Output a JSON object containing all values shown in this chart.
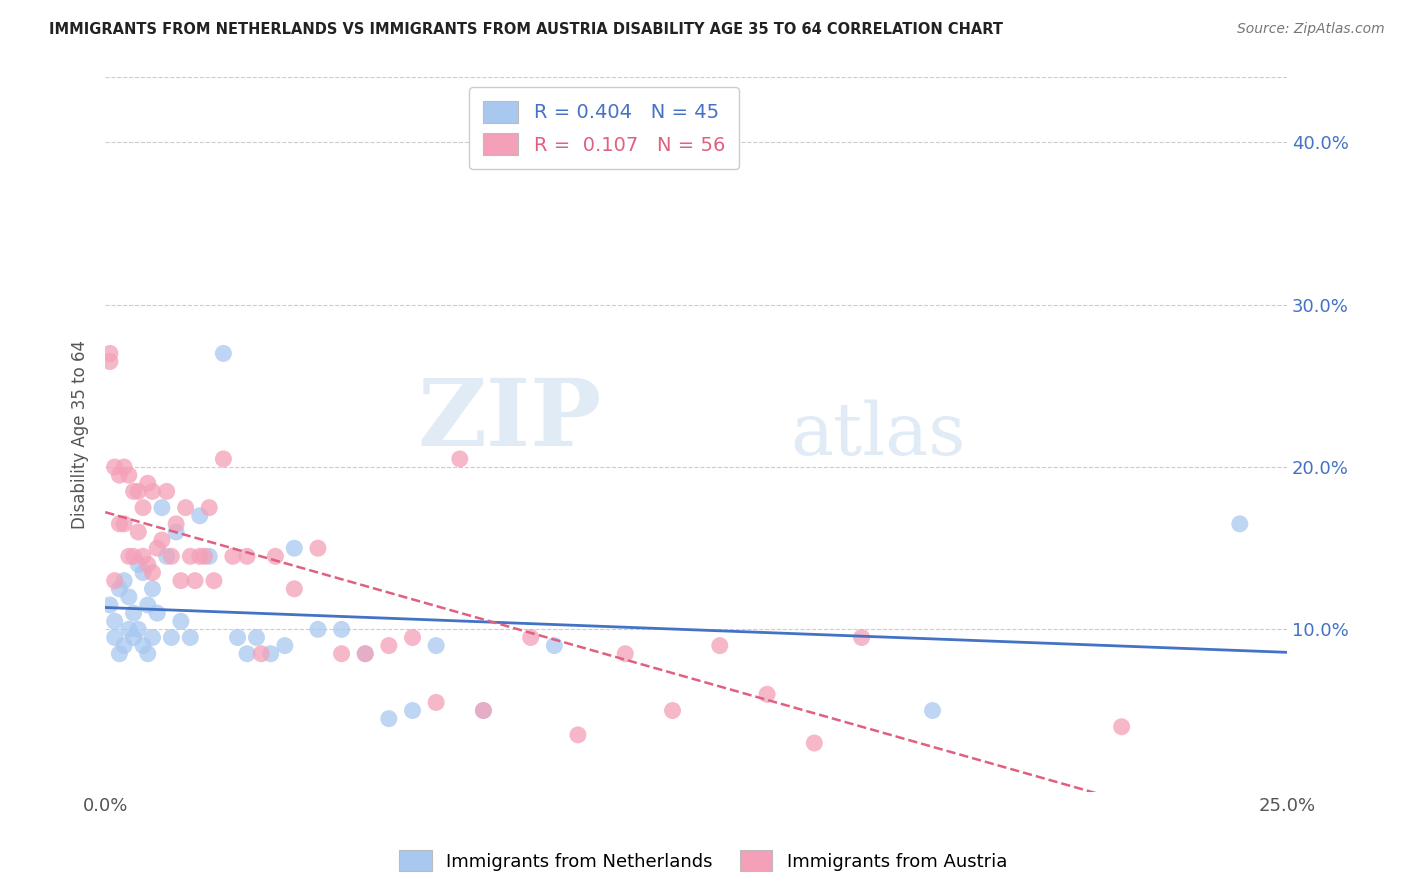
{
  "title": "IMMIGRANTS FROM NETHERLANDS VS IMMIGRANTS FROM AUSTRIA DISABILITY AGE 35 TO 64 CORRELATION CHART",
  "source": "Source: ZipAtlas.com",
  "ylabel": "Disability Age 35 to 64",
  "xlim": [
    0.0,
    0.25
  ],
  "ylim": [
    0.0,
    0.44
  ],
  "xticks": [
    0.0,
    0.25
  ],
  "yticks": [
    0.1,
    0.2,
    0.3,
    0.4
  ],
  "netherlands_R": 0.404,
  "netherlands_N": 45,
  "austria_R": 0.107,
  "austria_N": 56,
  "netherlands_color": "#A8C8F0",
  "austria_color": "#F4A0B8",
  "netherlands_line_color": "#4472C4",
  "austria_line_color": "#E06080",
  "watermark_zip": "ZIP",
  "watermark_atlas": "atlas",
  "nl_x": [
    0.001,
    0.002,
    0.002,
    0.003,
    0.003,
    0.004,
    0.004,
    0.005,
    0.005,
    0.006,
    0.006,
    0.007,
    0.007,
    0.008,
    0.008,
    0.009,
    0.009,
    0.01,
    0.01,
    0.011,
    0.012,
    0.013,
    0.014,
    0.015,
    0.016,
    0.018,
    0.02,
    0.022,
    0.025,
    0.028,
    0.03,
    0.032,
    0.035,
    0.038,
    0.04,
    0.045,
    0.05,
    0.055,
    0.06,
    0.065,
    0.07,
    0.08,
    0.095,
    0.175,
    0.24
  ],
  "nl_y": [
    0.115,
    0.105,
    0.095,
    0.125,
    0.085,
    0.13,
    0.09,
    0.12,
    0.1,
    0.11,
    0.095,
    0.14,
    0.1,
    0.135,
    0.09,
    0.115,
    0.085,
    0.125,
    0.095,
    0.11,
    0.175,
    0.145,
    0.095,
    0.16,
    0.105,
    0.095,
    0.17,
    0.145,
    0.27,
    0.095,
    0.085,
    0.095,
    0.085,
    0.09,
    0.15,
    0.1,
    0.1,
    0.085,
    0.045,
    0.05,
    0.09,
    0.05,
    0.09,
    0.05,
    0.165
  ],
  "at_x": [
    0.001,
    0.001,
    0.002,
    0.002,
    0.003,
    0.003,
    0.004,
    0.004,
    0.005,
    0.005,
    0.006,
    0.006,
    0.007,
    0.007,
    0.008,
    0.008,
    0.009,
    0.009,
    0.01,
    0.01,
    0.011,
    0.012,
    0.013,
    0.014,
    0.015,
    0.016,
    0.017,
    0.018,
    0.019,
    0.02,
    0.021,
    0.022,
    0.023,
    0.025,
    0.027,
    0.03,
    0.033,
    0.036,
    0.04,
    0.045,
    0.05,
    0.055,
    0.06,
    0.065,
    0.07,
    0.075,
    0.08,
    0.09,
    0.1,
    0.11,
    0.12,
    0.13,
    0.14,
    0.15,
    0.16,
    0.215
  ],
  "at_y": [
    0.27,
    0.265,
    0.13,
    0.2,
    0.195,
    0.165,
    0.2,
    0.165,
    0.145,
    0.195,
    0.185,
    0.145,
    0.185,
    0.16,
    0.175,
    0.145,
    0.19,
    0.14,
    0.185,
    0.135,
    0.15,
    0.155,
    0.185,
    0.145,
    0.165,
    0.13,
    0.175,
    0.145,
    0.13,
    0.145,
    0.145,
    0.175,
    0.13,
    0.205,
    0.145,
    0.145,
    0.085,
    0.145,
    0.125,
    0.15,
    0.085,
    0.085,
    0.09,
    0.095,
    0.055,
    0.205,
    0.05,
    0.095,
    0.035,
    0.085,
    0.05,
    0.09,
    0.06,
    0.03,
    0.095,
    0.04
  ]
}
